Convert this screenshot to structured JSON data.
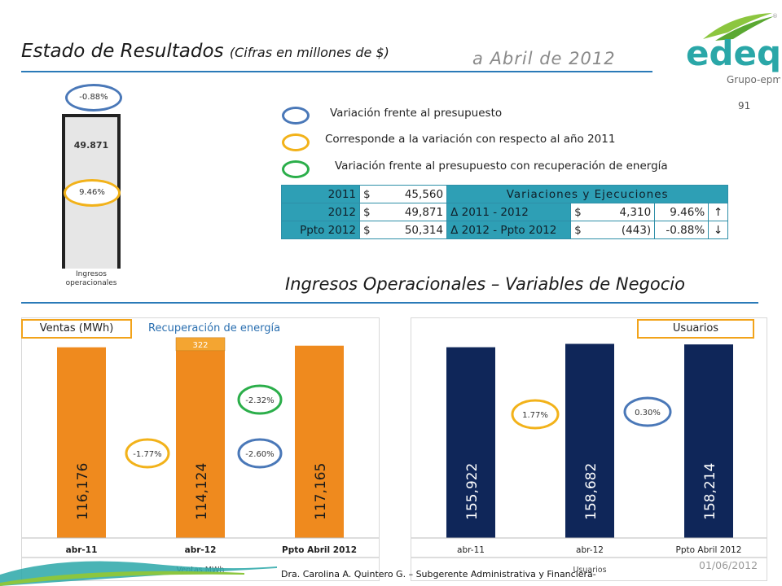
{
  "header": {
    "title": "Estado de Resultados",
    "subtitle": "(Cifras en millones de $)",
    "period": "a Abril de 2012",
    "page_number": "91",
    "logo_text": "edeq",
    "logo_group": "Grupo-epm"
  },
  "colors": {
    "accent_blue": "#2a7ab8",
    "orange": "#ef8a1e",
    "navy": "#0f2659",
    "teal": "#2e9fb5",
    "oval_blue": "#4a78b8",
    "oval_yellow": "#f2b21a",
    "oval_green": "#2bae4a"
  },
  "legend": [
    {
      "color_key": "blue",
      "text": "Variación frente al presupuesto"
    },
    {
      "color_key": "yellow",
      "text": "Corresponde a la variación con respecto al año 2011"
    },
    {
      "color_key": "green",
      "text": "Variación frente al presupuesto con recuperación de energía"
    }
  ],
  "summary_table": {
    "rows": [
      {
        "label": "2011",
        "cur": "$",
        "value": "45,560"
      },
      {
        "label": "2012",
        "cur": "$",
        "value": "49,871"
      },
      {
        "label": "Ppto 2012",
        "cur": "$",
        "value": "50,314"
      }
    ],
    "header": "Variaciones y Ejecuciones",
    "variations": [
      {
        "label": "Δ 2011 - 2012",
        "cur": "$",
        "amount": "4,310",
        "pct": "9.46%",
        "arrow": "↑"
      },
      {
        "label": "Δ 2012 - Ppto 2012",
        "cur": "$",
        "amount": "(443)",
        "pct": "-0.88%",
        "arrow": "↓"
      }
    ]
  },
  "section2_title": "Ingresos Operacionales – Variables de Negocio",
  "chart_data": [
    {
      "type": "bar",
      "id": "ingresos",
      "categories": [
        "Ingresos operacionales"
      ],
      "values": [
        49.871
      ],
      "value_label": "49.871",
      "xlabel": "Ingresos operacionales",
      "annotations": [
        {
          "text": "-0.88%",
          "color_key": "blue"
        },
        {
          "text": "9.46%",
          "color_key": "yellow"
        }
      ]
    },
    {
      "type": "bar",
      "id": "ventas",
      "tag": "Ventas (MWh)",
      "series_note": "Recuperación de energía",
      "categories": [
        "abr-11",
        "abr-12",
        "Ppto Abril 2012"
      ],
      "values": [
        116176,
        114124,
        117165
      ],
      "value_labels": [
        "116,176",
        "114,124",
        "117,165"
      ],
      "stacked_extra": {
        "category": "abr-12",
        "value": 322,
        "label": "322"
      },
      "xlabel": "Ventas MWh",
      "ylim": [
        0,
        120000
      ],
      "annotations": [
        {
          "text": "-1.77%",
          "color_key": "yellow"
        },
        {
          "text": "-2.32%",
          "color_key": "green"
        },
        {
          "text": "-2.60%",
          "color_key": "blue"
        }
      ]
    },
    {
      "type": "bar",
      "id": "usuarios",
      "tag": "Usuarios",
      "categories": [
        "abr-11",
        "abr-12",
        "Ppto Abril 2012"
      ],
      "values": [
        155922,
        158682,
        158214
      ],
      "value_labels": [
        "155,922",
        "158,682",
        "158,214"
      ],
      "xlabel": "Usuarios",
      "ylim": [
        0,
        161000
      ],
      "annotations": [
        {
          "text": "1.77%",
          "color_key": "yellow"
        },
        {
          "text": "0.30%",
          "color_key": "blue"
        }
      ]
    }
  ],
  "footer": {
    "author": "Dra. Carolina A. Quintero G. – Subgerente Administrativa y Financiera-",
    "date": "01/06/2012"
  }
}
